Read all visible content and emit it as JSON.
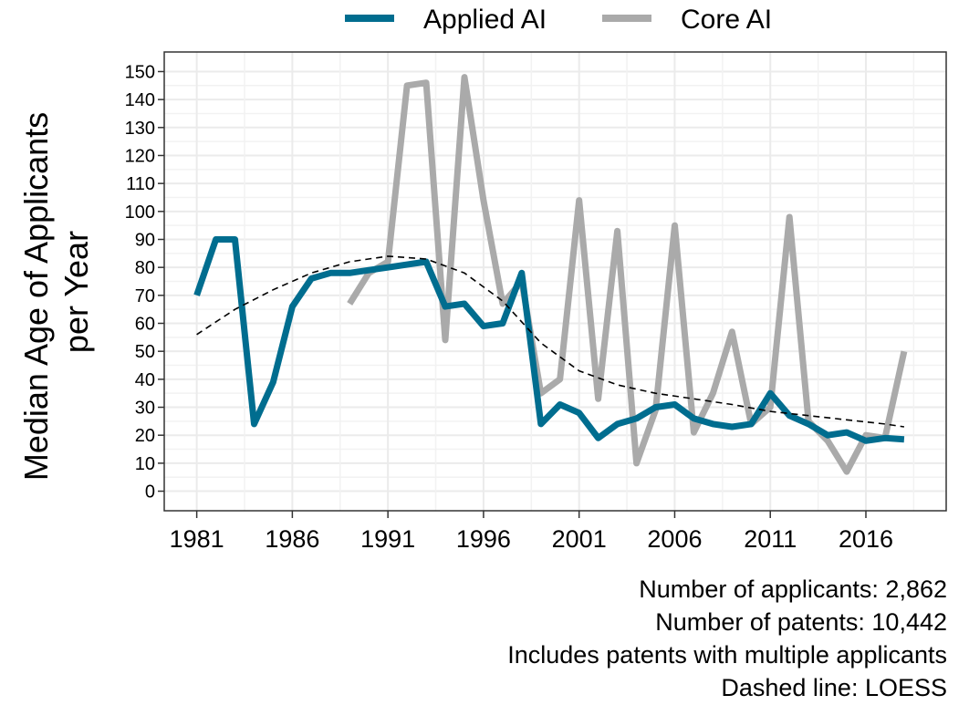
{
  "chart_data": {
    "type": "line",
    "ylabel": "Median Age of Applicants per Year",
    "xlabel": "",
    "xlim": [
      1979.3,
      2020.2
    ],
    "ylim": [
      -7,
      157
    ],
    "x_ticks": [
      "1981",
      "1986",
      "1991",
      "1996",
      "2001",
      "2006",
      "2011",
      "2016"
    ],
    "y_ticks": [
      "0",
      "10",
      "20",
      "30",
      "40",
      "50",
      "60",
      "70",
      "80",
      "90",
      "100",
      "110",
      "120",
      "130",
      "140",
      "150"
    ],
    "grid": true,
    "legend_position": "top",
    "series": [
      {
        "name": "Applied AI",
        "color": "#006d8f",
        "x": [
          1981,
          1982,
          1983,
          1984,
          1985,
          1986,
          1987,
          1988,
          1989,
          1990,
          1991,
          1992,
          1993,
          1994,
          1995,
          1996,
          1997,
          1998,
          1999,
          2000,
          2001,
          2002,
          2003,
          2004,
          2005,
          2006,
          2007,
          2008,
          2009,
          2010,
          2011,
          2012,
          2013,
          2014,
          2015,
          2016,
          2017,
          2018
        ],
        "y": [
          70,
          90,
          90,
          24,
          39,
          66,
          76,
          78,
          78,
          79,
          80,
          81,
          82,
          66,
          67,
          59,
          60,
          78,
          24,
          31,
          28,
          19,
          24,
          26,
          30,
          31,
          26,
          24,
          23,
          24,
          35,
          27,
          24,
          20,
          21,
          18,
          19,
          18.5
        ]
      },
      {
        "name": "Core AI",
        "color": "#aaaaaa",
        "x": [
          1989,
          1990,
          1991,
          1992,
          1993,
          1994,
          1995,
          1996,
          1997,
          1998,
          1999,
          2000,
          2001,
          2002,
          2003,
          2004,
          2005,
          2006,
          2007,
          2008,
          2009,
          2010,
          2011,
          2012,
          2013,
          2014,
          2015,
          2016,
          2017,
          2018
        ],
        "y": [
          67,
          78,
          82,
          145,
          146,
          54,
          148,
          104,
          67,
          75,
          35,
          40,
          104,
          33,
          93,
          10,
          29,
          95,
          21,
          35,
          57,
          24,
          30,
          98,
          25,
          18,
          7,
          20,
          19,
          50
        ]
      },
      {
        "name": "LOESS",
        "style": "dashed",
        "color": "#000000",
        "x": [
          1981,
          1983,
          1985,
          1987,
          1989,
          1991,
          1993,
          1995,
          1997,
          1999,
          2001,
          2003,
          2005,
          2007,
          2009,
          2011,
          2013,
          2015,
          2017,
          2018
        ],
        "y": [
          56,
          65,
          72,
          78,
          82,
          84,
          83,
          78,
          68,
          53,
          43,
          38,
          35,
          33,
          31,
          28.5,
          27,
          25.5,
          24,
          23
        ]
      }
    ],
    "annotations": [
      "Number of applicants: 2,862",
      "Number of patents: 10,442",
      "Includes patents with multiple applicants",
      "Dashed line: LOESS"
    ]
  }
}
